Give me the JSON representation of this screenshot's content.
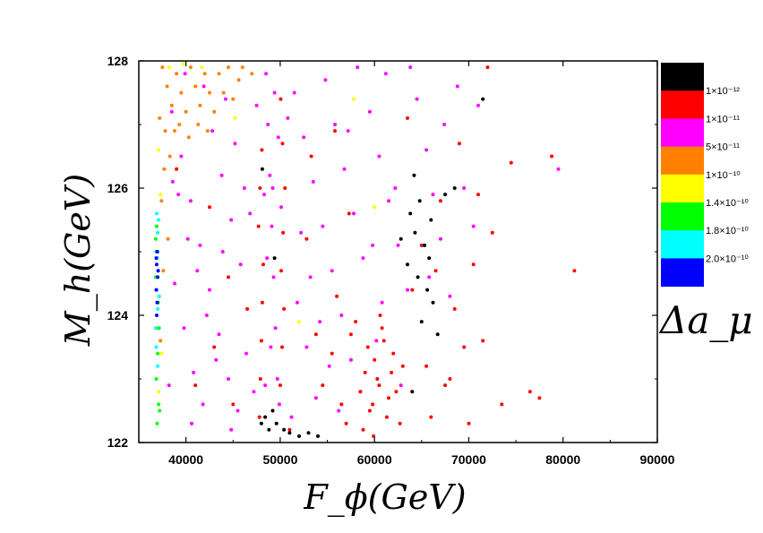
{
  "chart_data": {
    "type": "scatter",
    "title": "",
    "xlabel": "F_ϕ(GeV)",
    "ylabel": "M_h(GeV)",
    "xlim": [
      35000,
      90000
    ],
    "ylim": [
      122,
      128
    ],
    "x_ticks": [
      40000,
      50000,
      60000,
      70000,
      80000,
      90000
    ],
    "x_tick_labels": [
      "40000",
      "50000",
      "60000",
      "70000",
      "80000",
      "90000"
    ],
    "y_ticks": [
      122,
      124,
      126,
      128
    ],
    "y_tick_labels": [
      "122",
      "124",
      "126",
      "128"
    ],
    "colorbar": {
      "title": "Δa_μ",
      "bands": [
        {
          "color": "#000000",
          "label": ""
        },
        {
          "color": "#ff0000",
          "label": "1×10⁻¹²"
        },
        {
          "color": "#ff00ff",
          "label": "1×10⁻¹¹"
        },
        {
          "color": "#ff8000",
          "label": "5×10⁻¹¹"
        },
        {
          "color": "#ffff00",
          "label": "1×10⁻¹⁰"
        },
        {
          "color": "#00ff00",
          "label": "1.4×10⁻¹⁰"
        },
        {
          "color": "#00ffff",
          "label": "1.8×10⁻¹⁰"
        },
        {
          "color": "#0000ff",
          "label": "2.0×10⁻¹⁰"
        }
      ]
    },
    "series": [
      {
        "name": "magenta (1e-11 to 5e-11)",
        "color": "#ff00ff",
        "points": [
          [
            38500,
            127.2
          ],
          [
            39500,
            126.5
          ],
          [
            40500,
            125.8
          ],
          [
            41500,
            125.1
          ],
          [
            42500,
            124.4
          ],
          [
            43500,
            123.7
          ],
          [
            44500,
            123.0
          ],
          [
            45500,
            122.5
          ],
          [
            38800,
            124.5
          ],
          [
            39800,
            123.8
          ],
          [
            40800,
            123.1
          ],
          [
            41800,
            122.6
          ],
          [
            42800,
            126.9
          ],
          [
            43800,
            126.2
          ],
          [
            44800,
            125.5
          ],
          [
            45800,
            124.8
          ],
          [
            39200,
            125.9
          ],
          [
            40200,
            125.2
          ],
          [
            41200,
            124.7
          ],
          [
            42200,
            124.0
          ],
          [
            43200,
            123.3
          ],
          [
            44200,
            127.4
          ],
          [
            45200,
            126.7
          ],
          [
            46200,
            126.0
          ],
          [
            38200,
            122.9
          ],
          [
            39900,
            127.8
          ],
          [
            41900,
            127.6
          ],
          [
            43900,
            125.0
          ],
          [
            46400,
            123.4
          ],
          [
            47200,
            122.8
          ],
          [
            38600,
            126.1
          ],
          [
            40600,
            122.3
          ],
          [
            48500,
            127.8
          ],
          [
            48700,
            127.0
          ],
          [
            48900,
            126.2
          ],
          [
            49100,
            125.4
          ],
          [
            49300,
            124.6
          ],
          [
            49500,
            123.8
          ],
          [
            49700,
            123.0
          ],
          [
            49900,
            122.6
          ],
          [
            48300,
            125.9
          ],
          [
            48600,
            124.9
          ],
          [
            49000,
            123.5
          ],
          [
            49400,
            127.5
          ],
          [
            49800,
            126.8
          ],
          [
            50100,
            125.7
          ],
          [
            48400,
            122.9
          ],
          [
            49200,
            126.0
          ],
          [
            51500,
            127.5
          ],
          [
            52500,
            126.8
          ],
          [
            53500,
            126.1
          ],
          [
            54500,
            125.4
          ],
          [
            55500,
            124.7
          ],
          [
            56500,
            124.0
          ],
          [
            57500,
            123.3
          ],
          [
            58500,
            122.8
          ],
          [
            51800,
            124.2
          ],
          [
            52800,
            123.5
          ],
          [
            53800,
            122.7
          ],
          [
            54800,
            127.7
          ],
          [
            55800,
            127.0
          ],
          [
            56800,
            126.3
          ],
          [
            57800,
            125.6
          ],
          [
            58800,
            124.9
          ],
          [
            59500,
            127.2
          ],
          [
            60500,
            126.5
          ],
          [
            61500,
            125.8
          ],
          [
            62500,
            125.1
          ],
          [
            63500,
            124.4
          ],
          [
            60200,
            123.6
          ],
          [
            61200,
            127.8
          ],
          [
            62200,
            126.0
          ],
          [
            64500,
            127.4
          ],
          [
            65500,
            126.6
          ],
          [
            66200,
            125.9
          ],
          [
            67000,
            125.2
          ],
          [
            68000,
            124.3
          ],
          [
            63800,
            127.9
          ],
          [
            65800,
            124.6
          ],
          [
            67400,
            127.0
          ],
          [
            52200,
            125.3
          ],
          [
            53200,
            124.6
          ],
          [
            54200,
            123.9
          ],
          [
            55200,
            123.2
          ],
          [
            56200,
            122.5
          ],
          [
            57200,
            126.9
          ],
          [
            58200,
            127.9
          ],
          [
            59800,
            125.1
          ],
          [
            69500,
            126.0
          ],
          [
            70500,
            125.4
          ],
          [
            68800,
            127.6
          ],
          [
            71000,
            127.3
          ],
          [
            60800,
            124.2
          ],
          [
            62800,
            122.9
          ],
          [
            46800,
            125.6
          ],
          [
            47500,
            127.3
          ],
          [
            79500,
            126.3
          ],
          [
            44800,
            122.2
          ],
          [
            50800,
            127.1
          ],
          [
            51200,
            122.4
          ]
        ]
      },
      {
        "name": "red (1e-12 to 1e-11)",
        "color": "#ff0000",
        "points": [
          [
            47800,
            122.4
          ],
          [
            47900,
            123.0
          ],
          [
            48000,
            123.6
          ],
          [
            48100,
            124.2
          ],
          [
            48200,
            124.8
          ],
          [
            47700,
            125.4
          ],
          [
            47850,
            126.0
          ],
          [
            48050,
            126.6
          ],
          [
            50000,
            122.9
          ],
          [
            50200,
            123.5
          ],
          [
            50400,
            124.1
          ],
          [
            50100,
            124.7
          ],
          [
            50300,
            125.3
          ],
          [
            50500,
            126.0
          ],
          [
            50250,
            126.7
          ],
          [
            50050,
            127.4
          ],
          [
            58500,
            122.8
          ],
          [
            59000,
            123.1
          ],
          [
            59500,
            122.5
          ],
          [
            60000,
            123.3
          ],
          [
            60500,
            122.9
          ],
          [
            61000,
            123.6
          ],
          [
            61500,
            122.7
          ],
          [
            62000,
            123.4
          ],
          [
            58800,
            122.2
          ],
          [
            59300,
            123.5
          ],
          [
            59800,
            122.6
          ],
          [
            60300,
            123.0
          ],
          [
            60800,
            123.8
          ],
          [
            61300,
            122.4
          ],
          [
            61800,
            123.1
          ],
          [
            62300,
            122.8
          ],
          [
            57000,
            122.3
          ],
          [
            57500,
            123.7
          ],
          [
            56500,
            122.6
          ],
          [
            63000,
            123.2
          ],
          [
            62700,
            122.3
          ],
          [
            60600,
            124.0
          ],
          [
            58000,
            123.9
          ],
          [
            59900,
            122.1
          ],
          [
            55500,
            123.4
          ],
          [
            56000,
            124.3
          ],
          [
            54500,
            122.9
          ],
          [
            53800,
            123.7
          ],
          [
            52800,
            125.2
          ],
          [
            53300,
            126.5
          ],
          [
            55800,
            126.9
          ],
          [
            57300,
            125.6
          ],
          [
            64000,
            124.4
          ],
          [
            65500,
            123.2
          ],
          [
            66500,
            124.7
          ],
          [
            67500,
            122.9
          ],
          [
            68500,
            124.1
          ],
          [
            69500,
            123.5
          ],
          [
            66000,
            122.4
          ],
          [
            67000,
            125.8
          ],
          [
            70500,
            124.8
          ],
          [
            71500,
            123.6
          ],
          [
            72500,
            125.3
          ],
          [
            73500,
            122.6
          ],
          [
            74500,
            126.4
          ],
          [
            76500,
            122.8
          ],
          [
            77500,
            122.7
          ],
          [
            78800,
            126.5
          ],
          [
            81200,
            124.7
          ],
          [
            72000,
            127.9
          ],
          [
            70000,
            122.3
          ],
          [
            68000,
            123.0
          ],
          [
            65000,
            125.1
          ],
          [
            63500,
            127.1
          ],
          [
            71000,
            125.9
          ],
          [
            69000,
            126.7
          ],
          [
            41000,
            122.9
          ],
          [
            43000,
            123.5
          ],
          [
            45000,
            122.6
          ],
          [
            39000,
            126.3
          ],
          [
            42500,
            125.7
          ],
          [
            44500,
            124.6
          ],
          [
            46500,
            124.1
          ],
          [
            51000,
            122.2
          ]
        ]
      },
      {
        "name": "black (< 1e-12)",
        "color": "#000000",
        "points": [
          [
            48000,
            122.3
          ],
          [
            48400,
            122.4
          ],
          [
            48800,
            122.2
          ],
          [
            49200,
            122.5
          ],
          [
            49600,
            122.3
          ],
          [
            50400,
            122.2
          ],
          [
            51000,
            122.15
          ],
          [
            52000,
            122.1
          ],
          [
            53000,
            122.15
          ],
          [
            54000,
            122.1
          ],
          [
            63800,
            125.6
          ],
          [
            64300,
            125.3
          ],
          [
            64800,
            125.8
          ],
          [
            65300,
            125.1
          ],
          [
            65800,
            124.9
          ],
          [
            64600,
            124.6
          ],
          [
            66200,
            124.2
          ],
          [
            65000,
            123.9
          ],
          [
            66000,
            125.5
          ],
          [
            63500,
            124.8
          ],
          [
            67500,
            125.9
          ],
          [
            68500,
            126.0
          ],
          [
            71500,
            127.4
          ],
          [
            64200,
            126.2
          ],
          [
            64000,
            122.8
          ],
          [
            66700,
            123.7
          ],
          [
            62800,
            125.2
          ],
          [
            65600,
            124.4
          ],
          [
            49400,
            124.9
          ],
          [
            48100,
            126.3
          ]
        ]
      },
      {
        "name": "orange (5e-11 to 1e-10)",
        "color": "#ff8000",
        "points": [
          [
            37500,
            127.9
          ],
          [
            38000,
            127.6
          ],
          [
            38500,
            127.3
          ],
          [
            39000,
            127.8
          ],
          [
            39500,
            127.5
          ],
          [
            40000,
            127.2
          ],
          [
            40500,
            127.9
          ],
          [
            41000,
            127.6
          ],
          [
            41500,
            127.3
          ],
          [
            42000,
            127.8
          ],
          [
            42500,
            127.5
          ],
          [
            43000,
            127.2
          ],
          [
            43500,
            127.8
          ],
          [
            44000,
            127.5
          ],
          [
            44500,
            127.9
          ],
          [
            45000,
            127.4
          ],
          [
            37800,
            126.9
          ],
          [
            38300,
            126.5
          ],
          [
            38800,
            126.9
          ],
          [
            39300,
            127.0
          ],
          [
            40300,
            126.8
          ],
          [
            41300,
            127.0
          ],
          [
            42300,
            126.9
          ],
          [
            37200,
            127.1
          ],
          [
            37400,
            125.8
          ],
          [
            37600,
            124.7
          ],
          [
            37300,
            123.6
          ],
          [
            37700,
            126.3
          ],
          [
            38100,
            125.2
          ],
          [
            45600,
            127.7
          ],
          [
            46000,
            127.9
          ],
          [
            47000,
            127.8
          ]
        ]
      },
      {
        "name": "yellow (1e-10 to 1.4e-10)",
        "color": "#ffff00",
        "points": [
          [
            37100,
            126.6
          ],
          [
            37300,
            125.9
          ],
          [
            37200,
            124.3
          ],
          [
            37400,
            123.4
          ],
          [
            37100,
            122.8
          ],
          [
            38200,
            127.9
          ],
          [
            39700,
            127.95
          ],
          [
            41700,
            127.9
          ],
          [
            45200,
            127.1
          ],
          [
            52000,
            123.9
          ],
          [
            57800,
            127.4
          ],
          [
            60000,
            125.7
          ]
        ]
      },
      {
        "name": "green (1.4e-10 to 1.8e-10)",
        "color": "#00ff00",
        "points": [
          [
            36900,
            125.4
          ],
          [
            37000,
            125.0
          ],
          [
            36800,
            124.6
          ],
          [
            37050,
            124.2
          ],
          [
            36900,
            123.8
          ],
          [
            37000,
            123.4
          ],
          [
            36850,
            123.0
          ],
          [
            37100,
            122.6
          ],
          [
            36950,
            122.3
          ],
          [
            37200,
            122.5
          ],
          [
            36800,
            125.2
          ],
          [
            37150,
            123.8
          ]
        ]
      },
      {
        "name": "cyan (1.8e-10 to 2.0e-10)",
        "color": "#00ffff",
        "points": [
          [
            36900,
            125.6
          ],
          [
            37000,
            125.3
          ],
          [
            36850,
            125.0
          ],
          [
            37050,
            124.7
          ],
          [
            36900,
            124.4
          ],
          [
            37000,
            124.1
          ],
          [
            36800,
            123.8
          ],
          [
            37100,
            125.5
          ],
          [
            36950,
            124.9
          ],
          [
            37150,
            124.3
          ],
          [
            36850,
            123.5
          ],
          [
            37000,
            123.2
          ]
        ]
      },
      {
        "name": "blue (> 2.0e-10)",
        "color": "#0000ff",
        "points": [
          [
            36950,
            125.0
          ],
          [
            36900,
            124.8
          ],
          [
            37000,
            124.6
          ],
          [
            36850,
            124.4
          ],
          [
            36950,
            124.2
          ],
          [
            36900,
            124.0
          ],
          [
            37050,
            124.7
          ],
          [
            36850,
            124.9
          ]
        ]
      }
    ]
  }
}
